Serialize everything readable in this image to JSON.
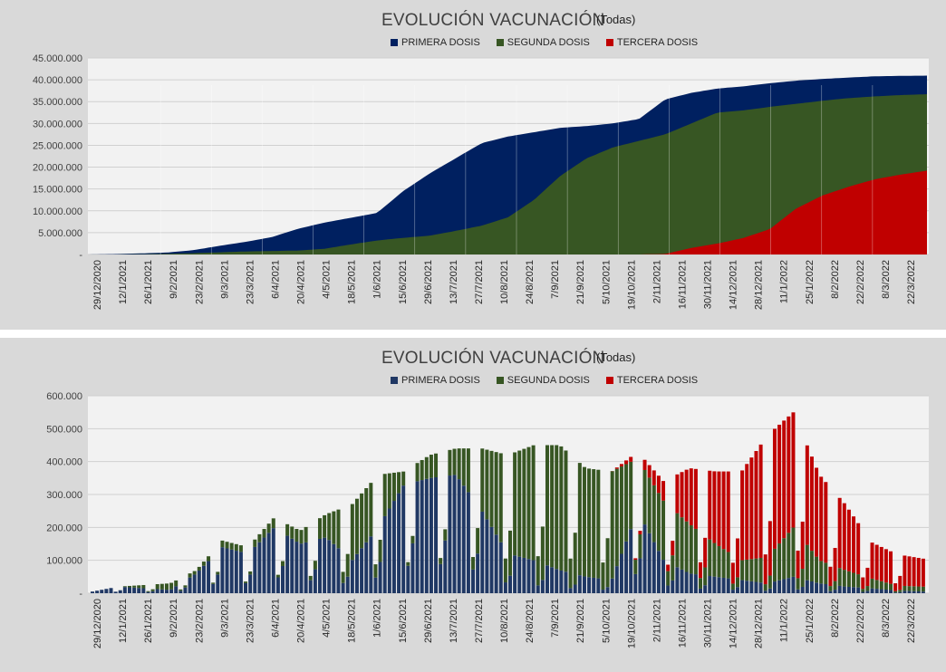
{
  "chart_data": [
    {
      "type": "area",
      "title": "EVOLUCIÓN VACUNACIÓN",
      "subtitle": "(Todas)",
      "ylim": [
        0,
        45000000
      ],
      "y_ticks": [
        "-",
        "5.000.000",
        "10.000.000",
        "15.000.000",
        "20.000.000",
        "25.000.000",
        "30.000.000",
        "35.000.000",
        "40.000.000",
        "45.000.000"
      ],
      "x_tick_labels": [
        "29/12/2020",
        "12/1/2021",
        "26/1/2021",
        "9/2/2021",
        "23/2/2021",
        "9/3/2021",
        "23/3/2021",
        "6/4/2021",
        "20/4/2021",
        "4/5/2021",
        "18/5/2021",
        "1/6/2021",
        "15/6/2021",
        "29/6/2021",
        "13/7/2021",
        "27/7/2021",
        "10/8/2021",
        "24/8/2021",
        "7/9/2021",
        "21/9/2021",
        "5/10/2021",
        "19/10/2021",
        "2/11/2021",
        "16/11/2021",
        "30/11/2021",
        "14/12/2021",
        "28/12/2021",
        "11/1/2022",
        "25/1/2022",
        "8/2/2022",
        "22/2/2022",
        "8/3/2022",
        "22/3/2022"
      ],
      "grid": true,
      "legend_position": "top",
      "series": [
        {
          "name": "PRIMERA DOSIS",
          "color": "#002060",
          "values": [
            0,
            100000,
            250000,
            450000,
            1000000,
            2000000,
            2900000,
            4000000,
            5900000,
            7300000,
            8400000,
            9500000,
            14500000,
            18500000,
            22000000,
            25500000,
            27000000,
            28000000,
            29000000,
            29400000,
            30000000,
            31000000,
            35500000,
            37000000,
            38000000,
            38500000,
            39200000,
            39800000,
            40200000,
            40500000,
            40800000,
            40900000,
            40950000
          ]
        },
        {
          "name": "SEGUNDA DOSIS",
          "color": "#375623",
          "values": [
            0,
            0,
            50000,
            150000,
            300000,
            500000,
            700000,
            800000,
            900000,
            1300000,
            2300000,
            3200000,
            3800000,
            4300000,
            5400000,
            6600000,
            8500000,
            12500000,
            18000000,
            22000000,
            24500000,
            26000000,
            27500000,
            30000000,
            32500000,
            33000000,
            33800000,
            34500000,
            35200000,
            35800000,
            36200000,
            36500000,
            36700000
          ]
        },
        {
          "name": "TERCERA DOSIS",
          "color": "#c00000",
          "values": [
            0,
            0,
            0,
            0,
            0,
            0,
            0,
            0,
            0,
            0,
            0,
            0,
            0,
            0,
            0,
            0,
            0,
            0,
            0,
            0,
            0,
            0,
            100000,
            1500000,
            2500000,
            3800000,
            5800000,
            10500000,
            13500000,
            15500000,
            17200000,
            18300000,
            19200000
          ]
        }
      ]
    },
    {
      "type": "bar",
      "stacked": true,
      "title": "EVOLUCIÓN VACUNACIÓN",
      "subtitle": "(Todas)",
      "ylim": [
        0,
        600000
      ],
      "y_ticks": [
        "-",
        "100.000",
        "200.000",
        "300.000",
        "400.000",
        "500.000",
        "600.000"
      ],
      "x_tick_labels": [
        "29/12/2020",
        "12/1/2021",
        "26/1/2021",
        "9/2/2021",
        "23/2/2021",
        "9/3/2021",
        "23/3/2021",
        "6/4/2021",
        "20/4/2021",
        "4/5/2021",
        "18/5/2021",
        "1/6/2021",
        "15/6/2021",
        "29/6/2021",
        "13/7/2021",
        "27/7/2021",
        "10/8/2021",
        "24/8/2021",
        "7/9/2021",
        "21/9/2021",
        "5/10/2021",
        "19/10/2021",
        "2/11/2021",
        "16/11/2021",
        "30/11/2021",
        "14/12/2021",
        "28/12/2021",
        "11/1/2022",
        "25/1/2022",
        "8/2/2022",
        "22/2/2022",
        "8/3/2022",
        "22/3/2022"
      ],
      "grid": true,
      "legend_position": "top",
      "series": [
        {
          "name": "PRIMERA DOSIS",
          "color": "#203864",
          "values": [
            5000,
            20000,
            15000,
            10000,
            60000,
            140000,
            120000,
            200000,
            150000,
            170000,
            100000,
            200000,
            330000,
            350000,
            360000,
            250000,
            120000,
            100000,
            70000,
            50000,
            40000,
            250000,
            100000,
            60000,
            50000,
            40000,
            30000,
            50000,
            30000,
            20000,
            15000,
            8000,
            5000
          ]
        },
        {
          "name": "SEGUNDA DOSIS",
          "color": "#375623",
          "values": [
            0,
            0,
            10000,
            20000,
            10000,
            20000,
            20000,
            30000,
            40000,
            70000,
            170000,
            160000,
            40000,
            70000,
            80000,
            190000,
            300000,
            350000,
            380000,
            330000,
            330000,
            160000,
            180000,
            150000,
            100000,
            60000,
            80000,
            150000,
            70000,
            50000,
            30000,
            15000,
            15000
          ]
        },
        {
          "name": "TERCERA DOSIS",
          "color": "#c00000",
          "values": [
            0,
            0,
            0,
            0,
            0,
            0,
            0,
            0,
            0,
            0,
            0,
            0,
            0,
            0,
            0,
            0,
            0,
            0,
            0,
            0,
            0,
            20000,
            60000,
            170000,
            220000,
            270000,
            370000,
            350000,
            260000,
            200000,
            110000,
            95000,
            85000
          ]
        }
      ]
    }
  ]
}
